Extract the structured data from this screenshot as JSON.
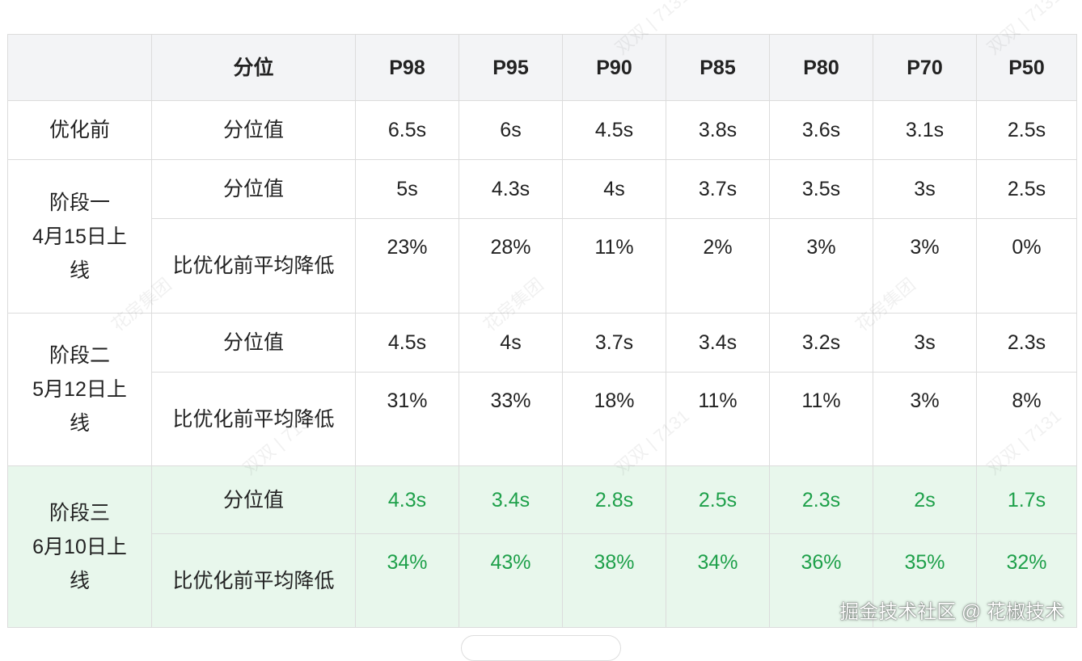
{
  "header": {
    "corner": "",
    "label": "分位",
    "columns": [
      "P98",
      "P95",
      "P90",
      "P85",
      "P80",
      "P70",
      "P50"
    ]
  },
  "rows": {
    "before": {
      "stage": "优化前",
      "metric": "分位值",
      "values": [
        "6.5s",
        "6s",
        "4.5s",
        "3.8s",
        "3.6s",
        "3.1s",
        "2.5s"
      ]
    },
    "stage1": {
      "stage": "阶段一\n4月15日上线",
      "metric": "分位值",
      "values": [
        "5s",
        "4.3s",
        "4s",
        "3.7s",
        "3.5s",
        "3s",
        "2.5s"
      ],
      "reduction_label": "比优化前平均降低",
      "reduction": [
        "23%",
        "28%",
        "11%",
        "2%",
        "3%",
        "3%",
        "0%"
      ]
    },
    "stage2": {
      "stage": "阶段二\n5月12日上线",
      "metric": "分位值",
      "values": [
        "4.5s",
        "4s",
        "3.7s",
        "3.4s",
        "3.2s",
        "3s",
        "2.3s"
      ],
      "reduction_label": "比优化前平均降低",
      "reduction": [
        "31%",
        "33%",
        "18%",
        "11%",
        "11%",
        "3%",
        "8%"
      ]
    },
    "stage3": {
      "stage": "阶段三\n6月10日上线",
      "metric": "分位值",
      "values": [
        "4.3s",
        "3.4s",
        "2.8s",
        "2.5s",
        "2.3s",
        "2s",
        "1.7s"
      ],
      "reduction_label": "比优化前平均降低",
      "reduction": [
        "34%",
        "43%",
        "38%",
        "34%",
        "36%",
        "35%",
        "32%"
      ]
    }
  },
  "colors": {
    "highlight_bg": "#e8f7ec",
    "highlight_text": "#1ea04a",
    "header_bg": "#f3f4f6"
  },
  "watermarks": [
    "双双 | 7131",
    "花房集团"
  ],
  "footer": "掘金技术社区 @ 花椒技术"
}
